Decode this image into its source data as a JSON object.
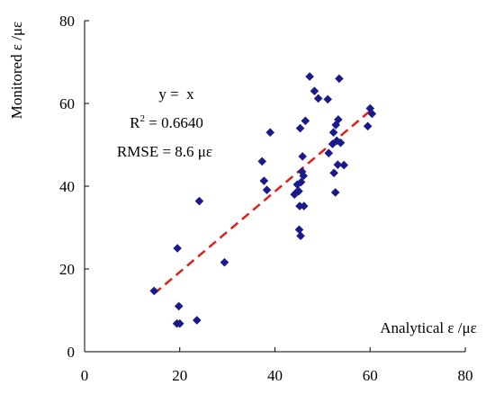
{
  "chart_data": {
    "type": "scatter",
    "xlabel": "Analytical ε /με",
    "ylabel": "Monitored ε /με",
    "xlim": [
      0,
      80
    ],
    "ylim": [
      0,
      80
    ],
    "x_ticks": [
      "0",
      "20",
      "40",
      "60",
      "80"
    ],
    "y_ticks": [
      "0",
      "20",
      "40",
      "60",
      "80"
    ],
    "grid": false,
    "annotations": {
      "equation": "y =  x",
      "r2_label": "R",
      "r2_sup": "2",
      "r2_value": " = 0.6640",
      "rmse": "RMSE = 8.6 με"
    },
    "series": [
      {
        "marker": "diamond",
        "color": "#1a1a8c",
        "points": [
          [
            14.6,
            14.7
          ],
          [
            19.5,
            25.0
          ],
          [
            19.8,
            11.0
          ],
          [
            19.4,
            6.8
          ],
          [
            20.0,
            6.8
          ],
          [
            23.6,
            7.6
          ],
          [
            24.1,
            36.4
          ],
          [
            29.4,
            21.6
          ],
          [
            37.3,
            46.0
          ],
          [
            37.7,
            41.3
          ],
          [
            38.3,
            39.1
          ],
          [
            39.0,
            53.0
          ],
          [
            44.1,
            38.0
          ],
          [
            44.5,
            38.5
          ],
          [
            44.7,
            40.4
          ],
          [
            45.1,
            29.5
          ],
          [
            45.4,
            28.0
          ],
          [
            45.2,
            35.2
          ],
          [
            46.1,
            35.2
          ],
          [
            45.0,
            38.8
          ],
          [
            45.5,
            41.0
          ],
          [
            46.0,
            42.5
          ],
          [
            45.7,
            43.5
          ],
          [
            45.8,
            47.2
          ],
          [
            45.3,
            54.0
          ],
          [
            46.4,
            55.8
          ],
          [
            47.3,
            66.5
          ],
          [
            48.3,
            63.0
          ],
          [
            49.1,
            61.2
          ],
          [
            51.1,
            61.0
          ],
          [
            51.3,
            48.0
          ],
          [
            52.4,
            43.2
          ],
          [
            52.7,
            38.5
          ],
          [
            52.1,
            50.2
          ],
          [
            52.3,
            53.0
          ],
          [
            52.8,
            54.8
          ],
          [
            53.3,
            56.1
          ],
          [
            53.5,
            66.0
          ],
          [
            53.0,
            51.0
          ],
          [
            53.8,
            50.5
          ],
          [
            53.2,
            45.2
          ],
          [
            54.5,
            45.1
          ],
          [
            59.5,
            54.5
          ],
          [
            60.0,
            58.8
          ],
          [
            60.4,
            57.5
          ]
        ]
      }
    ],
    "fit_line": {
      "name": "",
      "color": "#e0201a",
      "style": "dashed",
      "x": [
        14.6,
        60.0
      ],
      "y": [
        14.0,
        58.2
      ]
    }
  }
}
